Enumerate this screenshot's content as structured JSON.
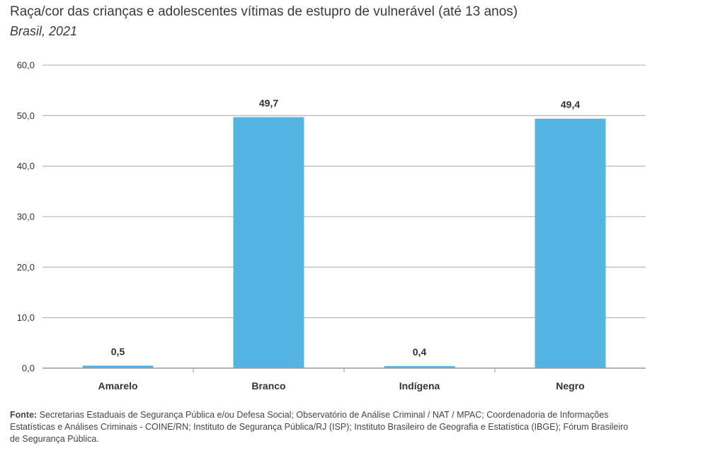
{
  "chart_data": {
    "type": "bar",
    "title": "Raça/cor das crianças e adolescentes vítimas de estupro de vulnerável (até 13 anos)",
    "subtitle": "Brasil, 2021",
    "categories": [
      "Amarelo",
      "Branco",
      "Indígena",
      "Negro"
    ],
    "values": [
      0.5,
      49.7,
      0.4,
      49.4
    ],
    "value_labels": [
      "0,5",
      "49,7",
      "0,4",
      "49,4"
    ],
    "ylim": [
      0,
      60
    ],
    "yticks": [
      0,
      10,
      20,
      30,
      40,
      50,
      60
    ],
    "ytick_labels": [
      "0,0",
      "10,0",
      "20,0",
      "30,0",
      "40,0",
      "50,0",
      "60,0"
    ],
    "grid": true,
    "bar_color": "#56b4e2"
  },
  "source": {
    "label": "Fonte:",
    "text": "Secretarias Estaduais de Segurança Pública e/ou Defesa Social; Observatório de Análise Criminal / NAT / MPAC; Coordenadoria de Informações Estatísticas e Análises Criminais - COINE/RN; Instituto de Segurança Pública/RJ (ISP); Instituto Brasileiro de Geografia e Estatística (IBGE); Fórum Brasileiro de Segurança Pública."
  }
}
